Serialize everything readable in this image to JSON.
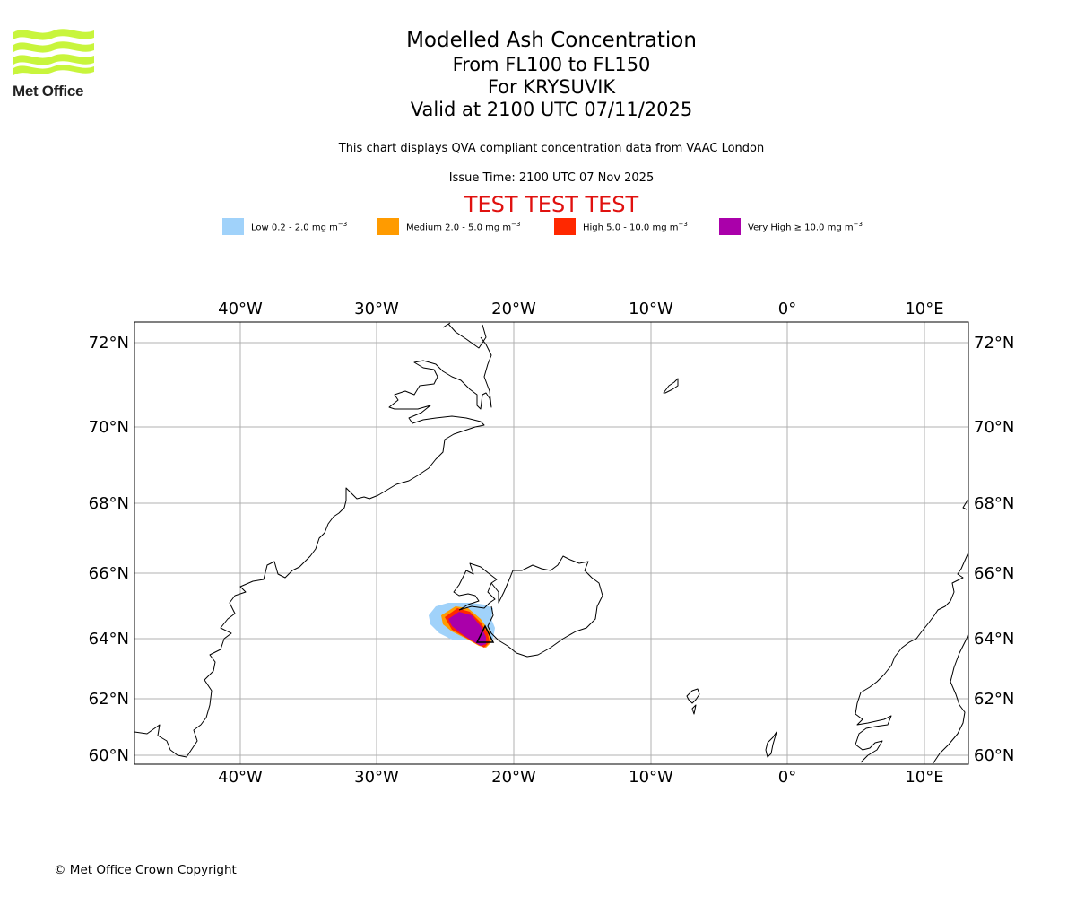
{
  "header": {
    "logo_text": "Met Office",
    "title": "Modelled Ash Concentration",
    "flight_levels": "From FL100 to FL150",
    "volcano": "For KRYSUVIK",
    "valid_time": "Valid at 2100 UTC 07/11/2025",
    "qva_note": "This chart displays QVA compliant concentration data from VAAC London",
    "issue_time": "Issue Time: 2100 UTC 07 Nov 2025",
    "test_banner": "TEST TEST TEST"
  },
  "legend": [
    {
      "label": "Low 0.2 - 2.0 mg m",
      "unit_exp": "−3",
      "color": "#a0d2fa"
    },
    {
      "label": "Medium 2.0 - 5.0 mg m",
      "unit_exp": "−3",
      "color": "#ff9b00"
    },
    {
      "label": "High 5.0 - 10.0 mg m",
      "unit_exp": "−3",
      "color": "#ff2800"
    },
    {
      "label": "Very High  ≥  10.0 mg m",
      "unit_exp": "−3",
      "color": "#aa00aa"
    }
  ],
  "map": {
    "lon_ticks": [
      "40°W",
      "30°W",
      "20°W",
      "10°W",
      "0°",
      "10°E"
    ],
    "lat_ticks": [
      "72°N",
      "70°N",
      "68°N",
      "66°N",
      "64°N",
      "62°N",
      "60°N"
    ]
  },
  "footer": {
    "copyright": "© Met Office Crown Copyright"
  },
  "colors": {
    "logo_green": "#c8f53c",
    "test_red": "#e0110f",
    "grid": "#b0b0b0"
  }
}
